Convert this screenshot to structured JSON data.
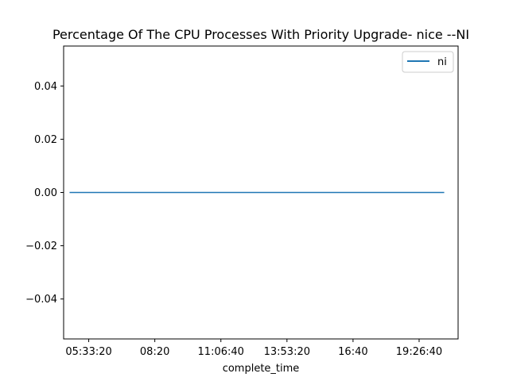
{
  "chart_data": {
    "type": "line",
    "title": "Percentage Of The CPU Processes With Priority Upgrade- nice --NI",
    "xlabel": "complete_time",
    "ylabel": "",
    "x_type": "time",
    "x_ticks": [
      "05:33:20",
      "08:20",
      "11:06:40",
      "13:53:20",
      "16:40",
      "19:26:40"
    ],
    "xlim": [
      "04:30:00",
      "21:05:00"
    ],
    "x": [
      "04:45:00",
      "20:30:00"
    ],
    "ylim": [
      -0.055,
      0.055
    ],
    "y_ticks": [
      0.04,
      0.02,
      0.0,
      -0.02,
      -0.04
    ],
    "y_tick_labels": [
      "0.04",
      "0.02",
      "0.00",
      "−0.02",
      "−0.04"
    ],
    "series": [
      {
        "name": "ni",
        "values": [
          0.0,
          0.0
        ],
        "color": "#1f77b4"
      }
    ],
    "grid": false,
    "legend_position": "top-right"
  }
}
